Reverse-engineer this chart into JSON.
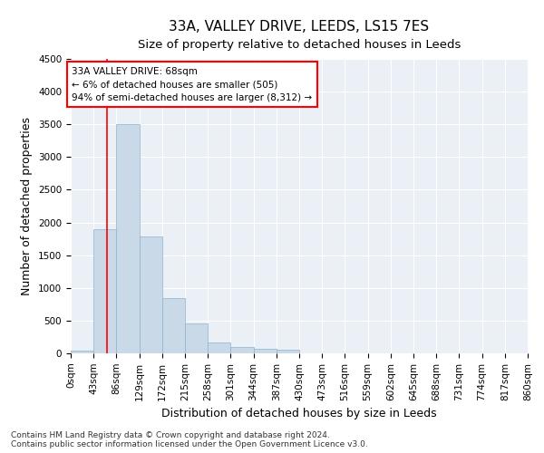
{
  "title": "33A, VALLEY DRIVE, LEEDS, LS15 7ES",
  "subtitle": "Size of property relative to detached houses in Leeds",
  "xlabel": "Distribution of detached houses by size in Leeds",
  "ylabel": "Number of detached properties",
  "bar_color": "#c9d9e8",
  "bar_edgecolor": "#8ab4ce",
  "property_line_x": 68,
  "property_line_color": "red",
  "annotation_title": "33A VALLEY DRIVE: 68sqm",
  "annotation_line1": "← 6% of detached houses are smaller (505)",
  "annotation_line2": "94% of semi-detached houses are larger (8,312) →",
  "bin_edges": [
    0,
    43,
    86,
    129,
    172,
    215,
    258,
    301,
    344,
    387,
    430,
    473,
    516,
    559,
    602,
    645,
    688,
    731,
    774,
    817,
    860
  ],
  "bin_labels": [
    "0sqm",
    "43sqm",
    "86sqm",
    "129sqm",
    "172sqm",
    "215sqm",
    "258sqm",
    "301sqm",
    "344sqm",
    "387sqm",
    "430sqm",
    "473sqm",
    "516sqm",
    "559sqm",
    "602sqm",
    "645sqm",
    "688sqm",
    "731sqm",
    "774sqm",
    "817sqm",
    "860sqm"
  ],
  "bar_heights": [
    40,
    1900,
    3500,
    1780,
    840,
    460,
    160,
    100,
    65,
    50,
    0,
    0,
    0,
    0,
    0,
    0,
    0,
    0,
    0,
    0
  ],
  "ylim": [
    0,
    4500
  ],
  "yticks": [
    0,
    500,
    1000,
    1500,
    2000,
    2500,
    3000,
    3500,
    4000,
    4500
  ],
  "footer_line1": "Contains HM Land Registry data © Crown copyright and database right 2024.",
  "footer_line2": "Contains public sector information licensed under the Open Government Licence v3.0.",
  "background_color": "#ffffff",
  "plot_bg_color": "#eaf0f6",
  "grid_color": "#ffffff",
  "title_fontsize": 11,
  "subtitle_fontsize": 9.5,
  "axis_label_fontsize": 9,
  "tick_fontsize": 7.5,
  "footer_fontsize": 6.5
}
